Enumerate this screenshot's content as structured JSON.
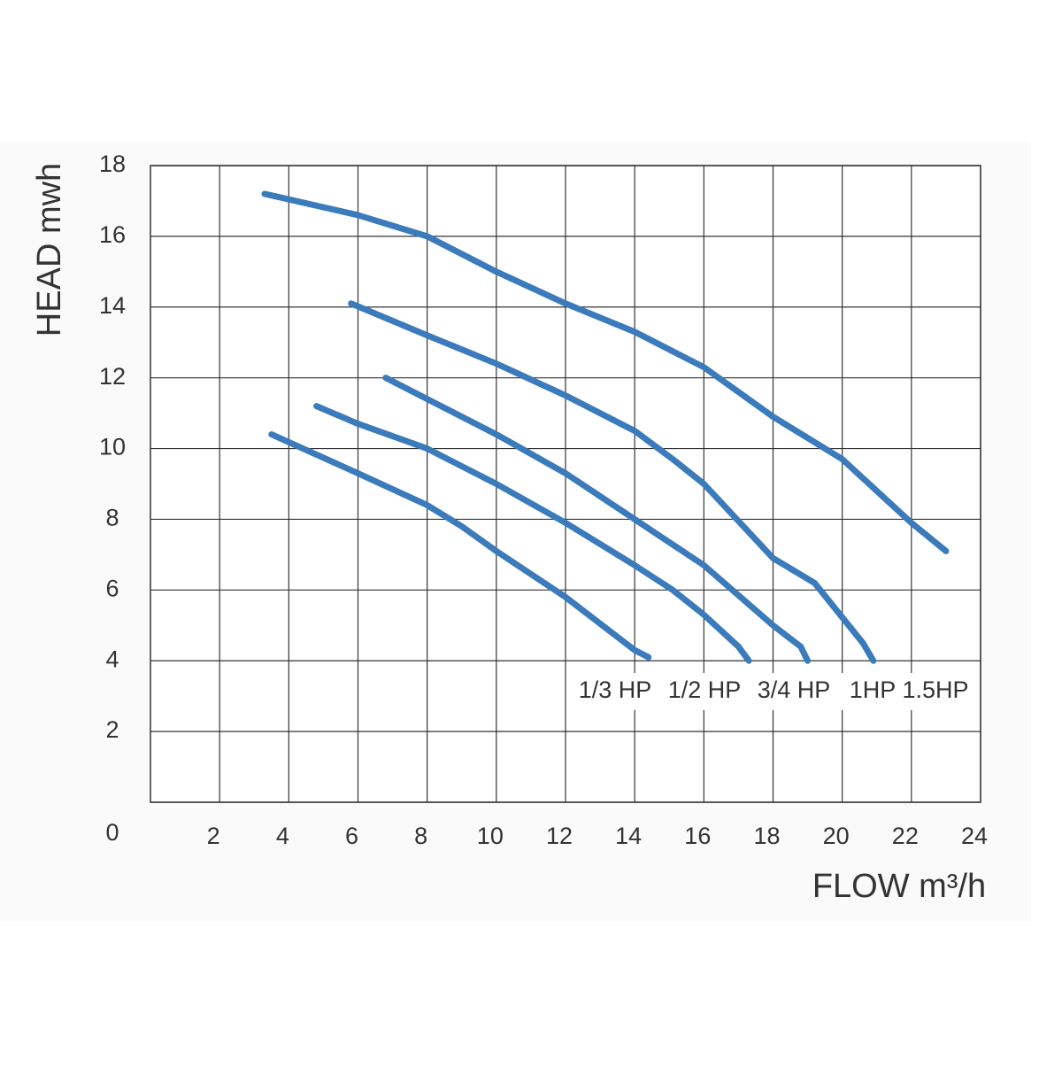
{
  "chart_data": {
    "type": "line",
    "xlabel": "FLOW  m³/h",
    "ylabel": "HEAD mwh",
    "xlim": [
      0,
      24
    ],
    "ylim": [
      0,
      18
    ],
    "xticks": [
      2,
      4,
      6,
      8,
      10,
      12,
      14,
      16,
      18,
      20,
      22,
      24
    ],
    "yticks": [
      0,
      2,
      4,
      6,
      8,
      10,
      12,
      14,
      16,
      18
    ],
    "grid": true,
    "series": [
      {
        "name": "1/3 HP",
        "color": "#3b7bbb",
        "x": [
          3.5,
          6.0,
          8.0,
          9.0,
          10.0,
          12.0,
          14.0,
          14.4
        ],
        "values": [
          10.4,
          9.3,
          8.4,
          7.8,
          7.1,
          5.8,
          4.3,
          4.1
        ]
      },
      {
        "name": "1/2 HP",
        "color": "#3b7bbb",
        "x": [
          4.8,
          6.0,
          8.0,
          10.0,
          12.0,
          14.0,
          15.1,
          16.0,
          17.0,
          17.3
        ],
        "values": [
          11.2,
          10.7,
          10.0,
          9.0,
          7.9,
          6.7,
          6.0,
          5.3,
          4.4,
          4.0
        ]
      },
      {
        "name": "3/4 HP",
        "color": "#3b7bbb",
        "x": [
          6.8,
          8.0,
          10.0,
          12.0,
          14.0,
          16.0,
          18.0,
          18.8,
          19.0
        ],
        "values": [
          12.0,
          11.4,
          10.4,
          9.3,
          8.0,
          6.7,
          5.0,
          4.4,
          4.0
        ]
      },
      {
        "name": "1HP",
        "color": "#3b7bbb",
        "x": [
          5.8,
          8.0,
          10.0,
          12.0,
          14.0,
          15.1,
          16.0,
          18.0,
          19.2,
          20.6,
          20.9
        ],
        "values": [
          14.1,
          13.2,
          12.4,
          11.5,
          10.5,
          9.7,
          9.0,
          6.9,
          6.2,
          4.5,
          4.0
        ]
      },
      {
        "name": "1.5HP",
        "color": "#3b7bbb",
        "x": [
          3.3,
          6.0,
          8.0,
          10.0,
          12.0,
          14.0,
          16.0,
          18.0,
          20.0,
          22.0,
          23.0
        ],
        "values": [
          17.2,
          16.6,
          16.0,
          15.0,
          14.1,
          13.3,
          12.3,
          10.9,
          9.7,
          7.9,
          7.1
        ]
      }
    ]
  }
}
